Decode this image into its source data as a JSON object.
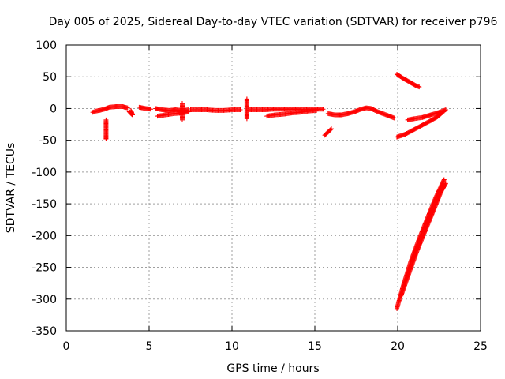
{
  "chart_data": {
    "type": "scatter",
    "title": "Day 005 of 2025, Sidereal Day-to-day VTEC variation (SDTVAR) for receiver p796",
    "xlabel": "GPS time / hours",
    "ylabel": "SDTVAR / TECUs",
    "xlim": [
      0,
      25
    ],
    "ylim": [
      -350,
      100
    ],
    "xticks": [
      "0",
      "5",
      "10",
      "15",
      "20",
      "25"
    ],
    "yticks": [
      "100",
      "50",
      "0",
      "-50",
      "-100",
      "-150",
      "-200",
      "-250",
      "-300",
      "-350"
    ],
    "grid": true,
    "marker": "+",
    "color": "#ff0000",
    "series": [
      {
        "name": "SDTVAR",
        "segments": [
          [
            [
              1.6,
              -6
            ],
            [
              1.8,
              -4
            ],
            [
              2.0,
              -3
            ],
            [
              2.3,
              -1
            ],
            [
              2.6,
              2
            ],
            [
              3.0,
              3
            ],
            [
              3.4,
              3
            ],
            [
              3.7,
              1
            ]
          ],
          [
            [
              2.4,
              -18
            ],
            [
              2.4,
              -35
            ],
            [
              2.4,
              -42
            ],
            [
              2.4,
              -48
            ]
          ],
          [
            [
              3.8,
              -5
            ],
            [
              3.9,
              -8
            ],
            [
              4.0,
              -10
            ],
            [
              3.9,
              -3
            ]
          ],
          [
            [
              4.4,
              2
            ],
            [
              4.6,
              1
            ],
            [
              4.8,
              0
            ],
            [
              5.1,
              -1
            ]
          ],
          [
            [
              5.4,
              0
            ],
            [
              5.8,
              -2
            ],
            [
              6.2,
              -3
            ],
            [
              6.6,
              -2
            ],
            [
              7.0,
              -3
            ],
            [
              7.4,
              -2
            ]
          ],
          [
            [
              5.5,
              -12
            ],
            [
              6.0,
              -10
            ],
            [
              6.5,
              -8
            ],
            [
              7.0,
              -7
            ],
            [
              7.4,
              -5
            ]
          ],
          [
            [
              7.0,
              8
            ],
            [
              7.0,
              -8
            ],
            [
              7.0,
              -18
            ]
          ],
          [
            [
              7.5,
              -2
            ],
            [
              8.0,
              -2
            ],
            [
              8.5,
              -2
            ],
            [
              9.0,
              -3
            ],
            [
              9.5,
              -3
            ],
            [
              10.0,
              -2
            ],
            [
              10.5,
              -2
            ]
          ],
          [
            [
              10.9,
              15
            ],
            [
              10.9,
              12
            ],
            [
              10.9,
              5
            ],
            [
              10.9,
              -10
            ],
            [
              10.9,
              -16
            ]
          ],
          [
            [
              11.0,
              -2
            ],
            [
              11.5,
              -2
            ],
            [
              12.0,
              -2
            ],
            [
              12.5,
              -1
            ],
            [
              13.0,
              -1
            ],
            [
              13.5,
              -1
            ],
            [
              14.0,
              -1
            ],
            [
              14.5,
              -2
            ],
            [
              15.0,
              -1
            ],
            [
              15.5,
              -1
            ]
          ],
          [
            [
              12.1,
              -12
            ],
            [
              12.6,
              -10
            ],
            [
              13.1,
              -9
            ],
            [
              13.6,
              -7
            ],
            [
              14.1,
              -6
            ],
            [
              14.6,
              -4
            ],
            [
              15.1,
              -3
            ]
          ],
          [
            [
              15.6,
              -42
            ],
            [
              15.8,
              -37
            ],
            [
              16.0,
              -32
            ]
          ],
          [
            [
              15.8,
              -8
            ],
            [
              16.2,
              -10
            ],
            [
              16.6,
              -10
            ],
            [
              17.0,
              -8
            ],
            [
              17.4,
              -5
            ],
            [
              17.8,
              -1
            ],
            [
              18.1,
              1
            ],
            [
              18.4,
              0
            ],
            [
              18.8,
              -5
            ],
            [
              19.2,
              -9
            ],
            [
              19.6,
              -13
            ],
            [
              19.8,
              -15
            ]
          ],
          [
            [
              19.95,
              54
            ],
            [
              20.3,
              48
            ],
            [
              20.7,
              42
            ],
            [
              21.1,
              36
            ],
            [
              21.3,
              34
            ]
          ],
          [
            [
              19.95,
              -45
            ],
            [
              20.5,
              -40
            ],
            [
              21.0,
              -33
            ],
            [
              21.5,
              -26
            ],
            [
              22.0,
              -19
            ],
            [
              22.4,
              -13
            ],
            [
              22.8,
              -4
            ]
          ],
          [
            [
              20.6,
              -18
            ],
            [
              21.0,
              -16
            ],
            [
              21.5,
              -14
            ],
            [
              22.0,
              -10
            ],
            [
              22.5,
              -6
            ],
            [
              22.9,
              -2
            ]
          ],
          [
            [
              19.95,
              -315
            ],
            [
              20.3,
              -282
            ],
            [
              20.8,
              -240
            ],
            [
              21.3,
              -205
            ],
            [
              21.8,
              -172
            ],
            [
              22.3,
              -140
            ],
            [
              22.8,
              -112
            ]
          ],
          [
            [
              20.2,
              -295
            ],
            [
              20.7,
              -258
            ],
            [
              21.2,
              -222
            ],
            [
              21.7,
              -190
            ],
            [
              22.2,
              -158
            ],
            [
              22.6,
              -132
            ],
            [
              22.9,
              -118
            ]
          ]
        ]
      }
    ]
  }
}
